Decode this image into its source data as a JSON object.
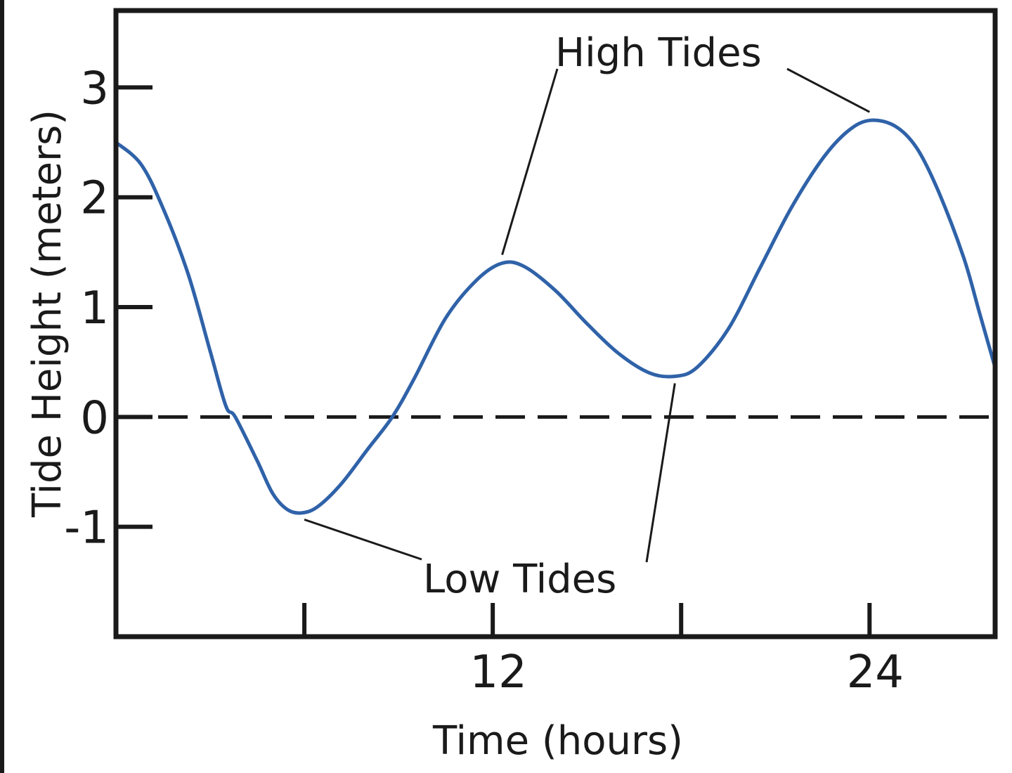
{
  "chart_data": {
    "type": "line",
    "title": "",
    "xlabel": "Time (hours)",
    "ylabel": "Tide Height (meters)",
    "xlim": [
      0,
      28
    ],
    "ylim": [
      -2,
      3.7
    ],
    "x_ticks": [
      6,
      12,
      18,
      24
    ],
    "x_tick_labels": [
      {
        "x": 12,
        "label": "12"
      },
      {
        "x": 24,
        "label": "24"
      }
    ],
    "y_ticks": [
      {
        "y": 3,
        "label": "3"
      },
      {
        "y": 2,
        "label": "2"
      },
      {
        "y": 1,
        "label": "1"
      },
      {
        "y": 0,
        "label": "0"
      },
      {
        "y": -1,
        "label": "-1"
      }
    ],
    "reference_line": {
      "y": 0,
      "style": "dashed"
    },
    "series": [
      {
        "color": "#2f62a8",
        "points": [
          [
            0,
            2.5
          ],
          [
            0.8,
            2.3
          ],
          [
            1.5,
            1.9
          ],
          [
            2.3,
            1.3
          ],
          [
            3,
            0.6
          ],
          [
            3.5,
            0.1
          ],
          [
            3.8,
            0.0
          ],
          [
            4.5,
            -0.4
          ],
          [
            5,
            -0.7
          ],
          [
            5.5,
            -0.85
          ],
          [
            6,
            -0.87
          ],
          [
            6.5,
            -0.8
          ],
          [
            7.2,
            -0.6
          ],
          [
            8,
            -0.3
          ],
          [
            8.8,
            0.0
          ],
          [
            9.5,
            0.35
          ],
          [
            10.5,
            0.9
          ],
          [
            11.5,
            1.25
          ],
          [
            12.3,
            1.4
          ],
          [
            13,
            1.37
          ],
          [
            14,
            1.15
          ],
          [
            15,
            0.85
          ],
          [
            16,
            0.58
          ],
          [
            17,
            0.4
          ],
          [
            17.8,
            0.37
          ],
          [
            18.5,
            0.45
          ],
          [
            19.5,
            0.8
          ],
          [
            20.5,
            1.35
          ],
          [
            21.5,
            1.9
          ],
          [
            22.5,
            2.35
          ],
          [
            23.3,
            2.6
          ],
          [
            24,
            2.7
          ],
          [
            24.8,
            2.65
          ],
          [
            25.5,
            2.45
          ],
          [
            26.2,
            2.05
          ],
          [
            27,
            1.45
          ],
          [
            27.5,
            0.95
          ],
          [
            28,
            0.45
          ]
        ]
      }
    ],
    "annotations": [
      {
        "label": "High Tides",
        "targets": [
          [
            12.3,
            1.4
          ],
          [
            24,
            2.7
          ]
        ]
      },
      {
        "label": "Low Tides",
        "targets": [
          [
            6,
            -0.87
          ],
          [
            17.8,
            0.37
          ]
        ]
      }
    ]
  }
}
